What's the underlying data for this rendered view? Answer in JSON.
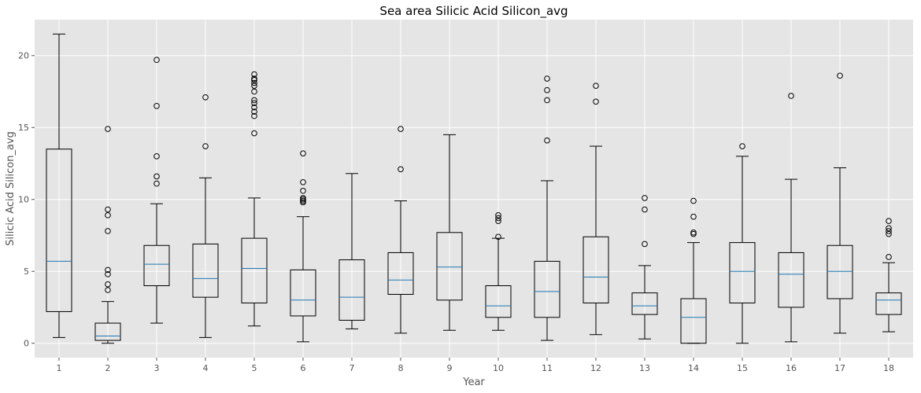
{
  "chart_data": {
    "type": "box",
    "title": "Sea area Silicic Acid Silicon_avg",
    "xlabel": "Year",
    "ylabel": "Silicic Acid Silicon_avg",
    "categories": [
      "1",
      "2",
      "3",
      "4",
      "5",
      "6",
      "7",
      "8",
      "9",
      "10",
      "11",
      "12",
      "13",
      "14",
      "15",
      "16",
      "17",
      "18"
    ],
    "ylim": [
      -1,
      22.5
    ],
    "yticks": [
      0,
      5,
      10,
      15,
      20
    ],
    "grid": true,
    "colors": {
      "plot_background": "#e5e5e5",
      "grid": "#ffffff",
      "box": "#000000",
      "median": "#1f77b4"
    },
    "boxes": [
      {
        "category": "1",
        "whisker_low": 0.4,
        "q1": 2.2,
        "median": 5.7,
        "q3": 13.5,
        "whisker_high": 21.5,
        "outliers": []
      },
      {
        "category": "2",
        "whisker_low": 0.0,
        "q1": 0.2,
        "median": 0.5,
        "q3": 1.4,
        "whisker_high": 2.9,
        "outliers": [
          3.7,
          4.1,
          4.8,
          5.1,
          7.8,
          8.9,
          9.3,
          14.9
        ]
      },
      {
        "category": "3",
        "whisker_low": 1.4,
        "q1": 4.0,
        "median": 5.5,
        "q3": 6.8,
        "whisker_high": 9.7,
        "outliers": [
          11.1,
          11.6,
          13.0,
          16.5,
          19.7
        ]
      },
      {
        "category": "4",
        "whisker_low": 0.4,
        "q1": 3.2,
        "median": 4.5,
        "q3": 6.9,
        "whisker_high": 11.5,
        "outliers": [
          13.7,
          17.1
        ]
      },
      {
        "category": "5",
        "whisker_low": 1.2,
        "q1": 2.8,
        "median": 5.2,
        "q3": 7.3,
        "whisker_high": 10.1,
        "outliers": [
          14.6,
          15.8,
          16.1,
          16.4,
          16.7,
          16.9,
          17.5,
          17.9,
          18.1,
          18.3,
          18.4,
          18.7
        ]
      },
      {
        "category": "6",
        "whisker_low": 0.1,
        "q1": 1.9,
        "median": 3.0,
        "q3": 5.1,
        "whisker_high": 8.8,
        "outliers": [
          9.8,
          9.9,
          10.0,
          10.1,
          10.6,
          11.2,
          13.2
        ]
      },
      {
        "category": "7",
        "whisker_low": 1.0,
        "q1": 1.6,
        "median": 3.2,
        "q3": 5.8,
        "whisker_high": 11.8,
        "outliers": []
      },
      {
        "category": "8",
        "whisker_low": 0.7,
        "q1": 3.4,
        "median": 4.4,
        "q3": 6.3,
        "whisker_high": 9.9,
        "outliers": [
          12.1,
          14.9
        ]
      },
      {
        "category": "9",
        "whisker_low": 0.9,
        "q1": 3.0,
        "median": 5.3,
        "q3": 7.7,
        "whisker_high": 14.5,
        "outliers": []
      },
      {
        "category": "10",
        "whisker_low": 0.9,
        "q1": 1.8,
        "median": 2.6,
        "q3": 4.0,
        "whisker_high": 7.3,
        "outliers": [
          7.4,
          8.5,
          8.7,
          8.9
        ]
      },
      {
        "category": "11",
        "whisker_low": 0.2,
        "q1": 1.8,
        "median": 3.6,
        "q3": 5.7,
        "whisker_high": 11.3,
        "outliers": [
          14.1,
          16.9,
          17.6,
          18.4
        ]
      },
      {
        "category": "12",
        "whisker_low": 0.6,
        "q1": 2.8,
        "median": 4.6,
        "q3": 7.4,
        "whisker_high": 13.7,
        "outliers": [
          16.8,
          17.9
        ]
      },
      {
        "category": "13",
        "whisker_low": 0.3,
        "q1": 2.0,
        "median": 2.6,
        "q3": 3.5,
        "whisker_high": 5.4,
        "outliers": [
          6.9,
          9.3,
          10.1
        ]
      },
      {
        "category": "14",
        "whisker_low": 0.0,
        "q1": 0.0,
        "median": 1.8,
        "q3": 3.1,
        "whisker_high": 7.0,
        "outliers": [
          7.6,
          7.7,
          8.8,
          9.9
        ]
      },
      {
        "category": "15",
        "whisker_low": 0.0,
        "q1": 2.8,
        "median": 5.0,
        "q3": 7.0,
        "whisker_high": 13.0,
        "outliers": [
          13.7
        ]
      },
      {
        "category": "16",
        "whisker_low": 0.1,
        "q1": 2.5,
        "median": 4.8,
        "q3": 6.3,
        "whisker_high": 11.4,
        "outliers": [
          17.2
        ]
      },
      {
        "category": "17",
        "whisker_low": 0.7,
        "q1": 3.1,
        "median": 5.0,
        "q3": 6.8,
        "whisker_high": 12.2,
        "outliers": [
          18.6
        ]
      },
      {
        "category": "18",
        "whisker_low": 0.8,
        "q1": 2.0,
        "median": 3.0,
        "q3": 3.5,
        "whisker_high": 5.6,
        "outliers": [
          6.0,
          7.6,
          7.8,
          8.0,
          8.5
        ]
      }
    ]
  }
}
